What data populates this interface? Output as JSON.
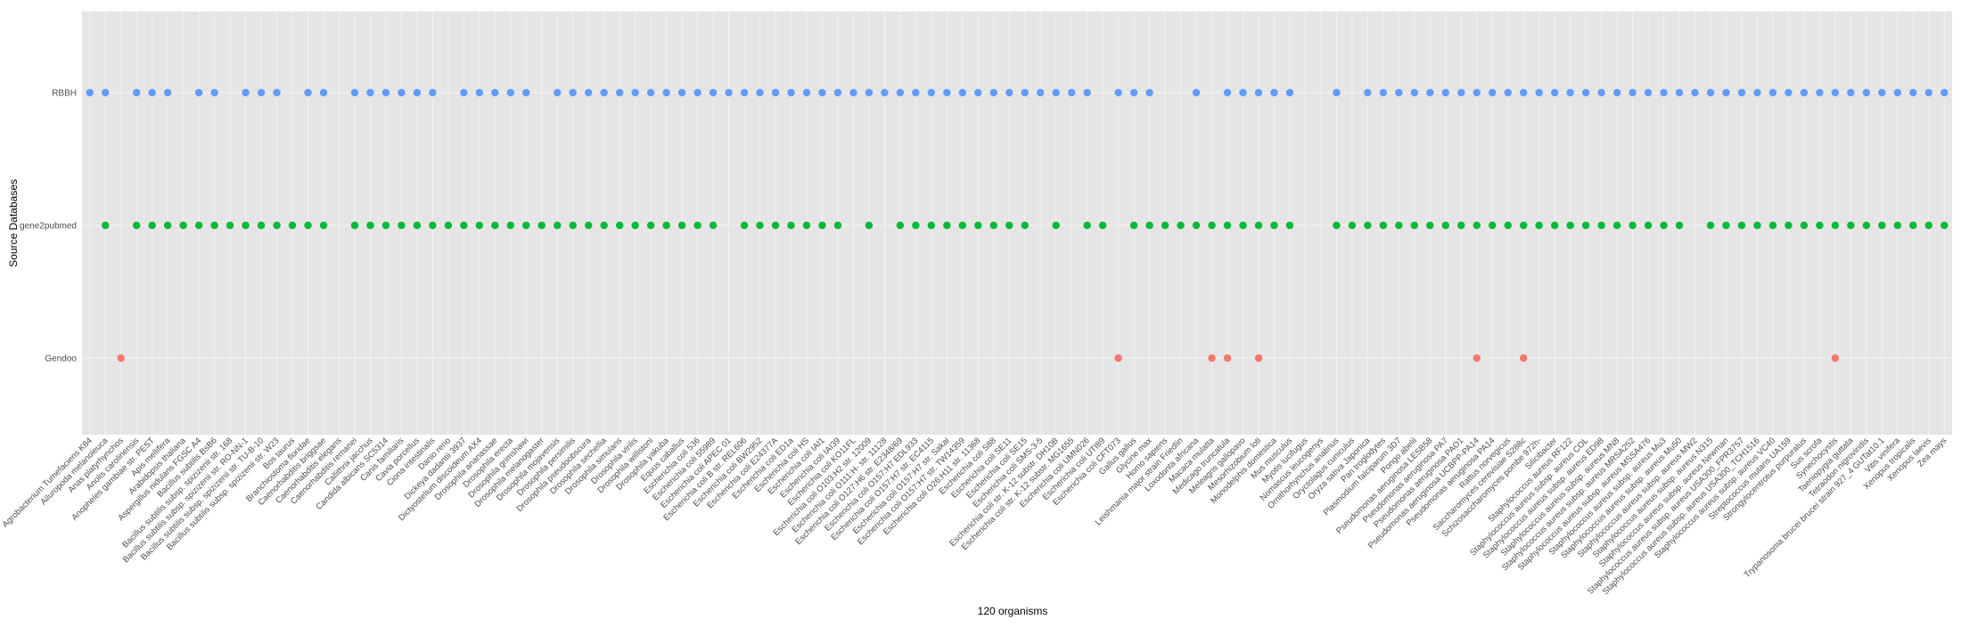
{
  "chart_data": {
    "type": "scatter",
    "xlabel": "120 organisms",
    "ylabel": "Source Databases",
    "y_categories": [
      "RBBH",
      "gene2pubmed",
      "Gendoo"
    ],
    "grid": true,
    "legend": "none",
    "colors": {
      "RBBH": "#619CFF",
      "gene2pubmed": "#00BA38",
      "Gendoo": "#F8766D",
      "panel": "#e5e5e5",
      "grid": "#f5f5f5"
    },
    "categories": [
      "Agrobacterium Tumefaciens K84",
      "Ailuropoda melanoleuca",
      "Anas platyrhynchos",
      "Anolis carolinensis",
      "Anopheles gambiae str. PEST",
      "Apis mellifera",
      "Arabidopsis thaliana",
      "Aspergillus nidulans FGSC A4",
      "Bacillus subtilis BsB6",
      "Bacillus subtilis subsp. spizizenii str. 168",
      "Bacillus subtilis subsp. spizizenii str. RO-NN-1",
      "Bacillus subtilis subsp. spizizenii str. TU-B-10",
      "Bacillus subtilis subsp. spizizenii str. W23",
      "Bos taurus",
      "Branchiostoma floridae",
      "Caenorhabditis briggsae",
      "Caenorhabditis elegans",
      "Caenorhabditis remanei",
      "Callithrix jacchus",
      "Candida albicans SC5314",
      "Canis familiaris",
      "Cavia porcellus",
      "Ciona intestinalis",
      "Danio rerio",
      "Dickeya dadantii 3937",
      "Dictyostelium discoideum AX4",
      "Drosophila ananassae",
      "Drosophila erecta",
      "Drosophila grimshawi",
      "Drosophila melanogaster",
      "Drosophila mojavensis",
      "Drosophila persimilis",
      "Drosophila pseudoobscura",
      "Drosophila sechellia",
      "Drosophila simulans",
      "Drosophila virilis",
      "Drosophila willistoni",
      "Drosophila yakuba",
      "Equus caballus",
      "Escherichia coli 536",
      "Escherichia coli 55989",
      "Escherichia coli APEC 01",
      "Escherichia coli B str. REL606",
      "Escherichia coli BW2952",
      "Escherichia coli E24377A",
      "Escherichia coli ED1a",
      "Escherichia coli HS",
      "Escherichia coli IAI1",
      "Escherichia coli IAI39",
      "Escherichia coli KO11FL",
      "Escherichia coli O103:H2 str. 12009",
      "Escherichia coli O111:H- str. 11128",
      "Escherichia coli O127:H6 str. E2348/69",
      "Escherichia coli O157:H7 EDL933",
      "Escherichia coli O157:H7 str. EC4115",
      "Escherichia coli O157:H7 str. Sakai",
      "Escherichia coli O157:H7 str. TW14359",
      "Escherichia coli O26:H11 str. 11368",
      "Escherichia coli S88",
      "Escherichia coli SE11",
      "Escherichia coli SE15",
      "Escherichia coli SMS-3-5",
      "Escherichia coli str. K-12 substr. DH10B",
      "Escherichia coli str. K-12 substr. MG1655",
      "Escherichia coli UMN026",
      "Escherichia coli UTI89",
      "Escherichia coli CFT073",
      "Gallus gallus",
      "Glycine max",
      "Homo sapiens",
      "Leishmania major strain Friedlin",
      "Loxodonta africana",
      "Macaca mulatta",
      "Medicago truncatula",
      "Meleagris gallopavo",
      "Mesorhizobium loti",
      "Monodelphis domestica",
      "Mus musculus",
      "Myotis lucifugus",
      "Nomascus leucogenys",
      "Ornithorhynchus anatinus",
      "Oryctolagus cuniculus",
      "Oryza sativa Japonica",
      "Pan troglodytes",
      "Plasmodium falciparum 3D7",
      "Pongo abelii",
      "Pseudomonas aeruginosa LESB58",
      "Pseudomonas aeruginosa PA7",
      "Pseudomonas aeruginosa PAO1",
      "Pseudomonas aeruginosa UCBPP-PA14",
      "Pseudomonas aeruginosa PA14",
      "Rattus norvegicus",
      "Saccharomyces cerevisiae S288c",
      "Schizosaccharomyces pombe 972h-",
      "Silicibacter",
      "Staphylococcus aureus RF122",
      "Staphylococcus aureus subsp. aureus COL",
      "Staphylococcus aureus subsp. aureus ED98",
      "Staphylococcus aureus subsp. aureus MN8",
      "Staphylococcus aureus subsp. aureus MRSA252",
      "Staphylococcus aureus subsp. aureus MSSA476",
      "Staphylococcus aureus subsp. aureus Mu3",
      "Staphylococcus aureus subsp. aureus Mu50",
      "Staphylococcus aureus subsp. aureus MW2",
      "Staphylococcus aureus subsp. aureus N315",
      "Staphylococcus aureus subsp. aureus Newman",
      "Staphylococcus aureus subsp. aureus USA300_FPR3757",
      "Staphylococcus aureus subsp. aureus USA300_TCH1516",
      "Staphylococcus aureus subsp. aureus VC40",
      "Streptococcus mutans UA159",
      "Strongylocentrotus purpuratus",
      "Sus scrofa",
      "Synechocystis",
      "Taeniopygia guttata",
      "Tetraodon nigroviridis",
      "Trypanosoma brucei brucei strain 927_4 GUTat10.1",
      "Vitis vinifera",
      "Xenopus tropicalis",
      "Xenopus laevis",
      "Zea mays"
    ],
    "series": [
      {
        "name": "RBBH",
        "x_indices": [
          0,
          1,
          3,
          4,
          5,
          7,
          8,
          10,
          11,
          12,
          14,
          15,
          17,
          18,
          19,
          20,
          21,
          22,
          24,
          25,
          26,
          27,
          28,
          30,
          31,
          32,
          33,
          34,
          35,
          36,
          37,
          38,
          39,
          40,
          41,
          42,
          43,
          44,
          45,
          46,
          47,
          48,
          49,
          50,
          51,
          52,
          53,
          54,
          55,
          56,
          57,
          58,
          59,
          60,
          61,
          62,
          63,
          64,
          66,
          67,
          68,
          71,
          73,
          74,
          75,
          76,
          77,
          80,
          82,
          83,
          84,
          85,
          86,
          87,
          88,
          89,
          90,
          91,
          92,
          93,
          94,
          95,
          96,
          97,
          98,
          99,
          100,
          101,
          102,
          103,
          104,
          105,
          106,
          107,
          108,
          109,
          110,
          111,
          112,
          113,
          114,
          115,
          116,
          117,
          118,
          119
        ]
      },
      {
        "name": "gene2pubmed",
        "x_indices": [
          1,
          3,
          4,
          5,
          6,
          7,
          8,
          9,
          10,
          11,
          12,
          13,
          14,
          15,
          17,
          18,
          19,
          20,
          21,
          22,
          23,
          24,
          25,
          26,
          27,
          28,
          29,
          30,
          31,
          32,
          33,
          34,
          35,
          36,
          37,
          38,
          39,
          40,
          42,
          43,
          44,
          45,
          46,
          47,
          48,
          50,
          52,
          53,
          54,
          55,
          56,
          57,
          58,
          59,
          60,
          62,
          64,
          65,
          67,
          68,
          69,
          70,
          71,
          72,
          73,
          74,
          75,
          76,
          77,
          80,
          81,
          82,
          83,
          84,
          85,
          86,
          87,
          88,
          89,
          90,
          91,
          92,
          93,
          94,
          95,
          96,
          97,
          98,
          99,
          100,
          101,
          102,
          104,
          105,
          106,
          107,
          108,
          109,
          110,
          111,
          112,
          113,
          114,
          115,
          116,
          117,
          118,
          119
        ]
      },
      {
        "name": "Gendoo",
        "x_indices": [
          2,
          66,
          72,
          73,
          75,
          89,
          92,
          112
        ]
      }
    ]
  }
}
